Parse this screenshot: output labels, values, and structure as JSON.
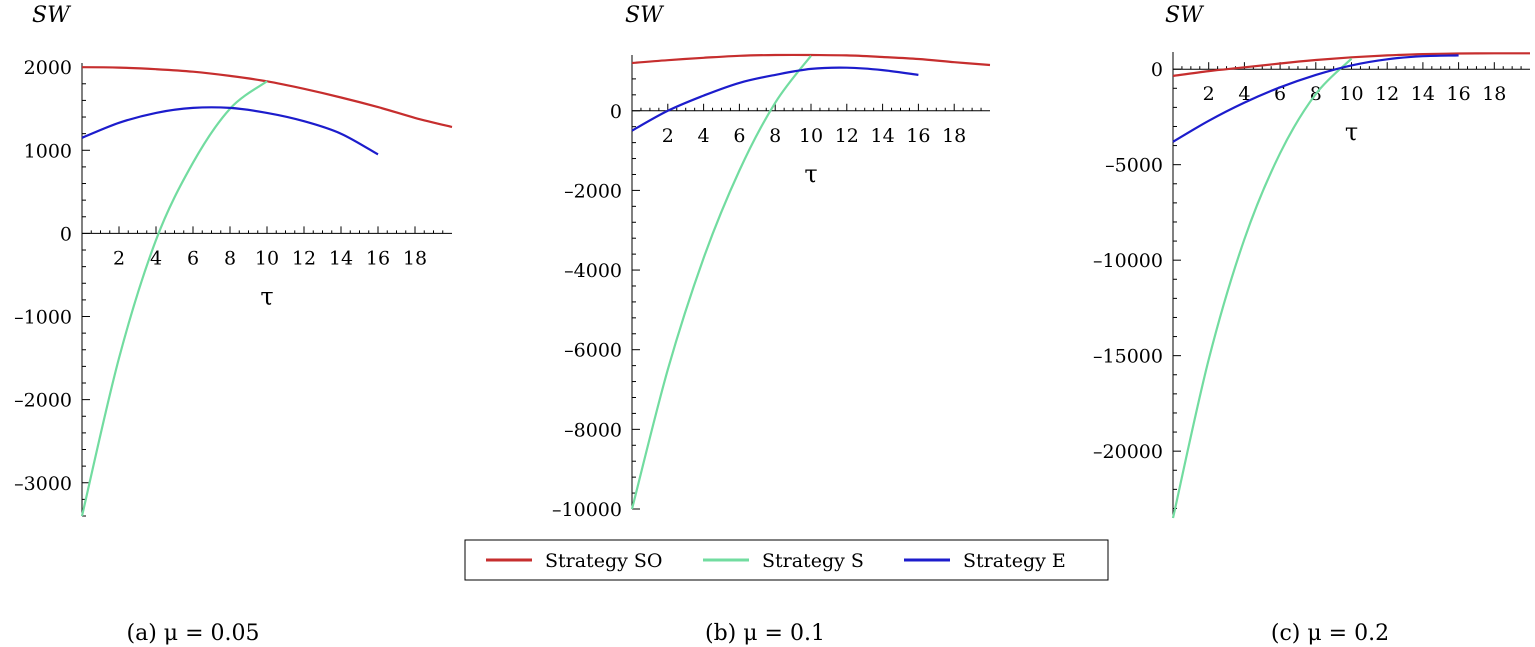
{
  "colors": {
    "so": "#c62e2e",
    "s": "#72dca0",
    "e": "#1c1ccc",
    "axis": "#000000"
  },
  "legend": {
    "placement": "bottom-center",
    "entries": [
      {
        "label": "Strategy SO",
        "color": "#c62e2e"
      },
      {
        "label": "Strategy S",
        "color": "#72dca0"
      },
      {
        "label": "Strategy E",
        "color": "#1c1ccc"
      }
    ]
  },
  "chart_data": [
    {
      "type": "line",
      "caption": "(a)  μ = 0.05",
      "ylabel": "SW",
      "xlabel": "τ",
      "xlim": [
        0,
        20
      ],
      "ylim": [
        -3400,
        2050
      ],
      "xticks": [
        2,
        4,
        6,
        8,
        10,
        12,
        14,
        16,
        18
      ],
      "yticks": [
        2000,
        1000,
        0,
        -1000,
        -2000,
        -3000
      ],
      "grid": false,
      "series": [
        {
          "name": "Strategy SO",
          "x": [
            0,
            2,
            4,
            6,
            8,
            10,
            12,
            14,
            16,
            18,
            20
          ],
          "y": [
            2000,
            1995,
            1975,
            1945,
            1895,
            1830,
            1740,
            1635,
            1520,
            1390,
            1280
          ]
        },
        {
          "name": "Strategy S",
          "x": [
            0,
            2,
            4,
            6,
            8,
            10
          ],
          "y": [
            -3400,
            -1500,
            -80,
            850,
            1500,
            1830
          ]
        },
        {
          "name": "Strategy E",
          "x": [
            0,
            2,
            4,
            6,
            8,
            10,
            12,
            14,
            16
          ],
          "y": [
            1150,
            1330,
            1450,
            1510,
            1510,
            1450,
            1350,
            1200,
            950
          ]
        }
      ]
    },
    {
      "type": "line",
      "caption": "(b)  μ = 0.1",
      "ylabel": "SW",
      "xlabel": "τ",
      "xlim": [
        0,
        20
      ],
      "ylim": [
        -10000,
        1400
      ],
      "xticks": [
        2,
        4,
        6,
        8,
        10,
        12,
        14,
        16,
        18
      ],
      "yticks": [
        0,
        -2000,
        -4000,
        -6000,
        -8000,
        -10000
      ],
      "grid": false,
      "series": [
        {
          "name": "Strategy SO",
          "x": [
            0,
            2,
            4,
            6,
            8,
            10,
            12,
            14,
            16,
            18,
            20
          ],
          "y": [
            1200,
            1270,
            1330,
            1380,
            1400,
            1400,
            1390,
            1350,
            1300,
            1220,
            1150
          ]
        },
        {
          "name": "Strategy S",
          "x": [
            0,
            2,
            4,
            6,
            8,
            10
          ],
          "y": [
            -10000,
            -6500,
            -3700,
            -1500,
            200,
            1380
          ]
        },
        {
          "name": "Strategy E",
          "x": [
            0,
            2,
            4,
            6,
            8,
            10,
            12,
            14,
            16
          ],
          "y": [
            -500,
            0,
            380,
            700,
            900,
            1050,
            1080,
            1020,
            900
          ]
        }
      ]
    },
    {
      "type": "line",
      "caption": "(c)  μ = 0.2",
      "ylabel": "SW",
      "xlabel": "τ",
      "xlim": [
        0,
        20
      ],
      "ylim": [
        -23500,
        900
      ],
      "xticks": [
        2,
        4,
        6,
        8,
        10,
        12,
        14,
        16,
        18
      ],
      "yticks": [
        0,
        -5000,
        -10000,
        -15000,
        -20000
      ],
      "grid": false,
      "series": [
        {
          "name": "Strategy SO",
          "x": [
            0,
            2,
            4,
            6,
            8,
            10,
            12,
            14,
            16,
            18,
            20
          ],
          "y": [
            -350,
            -100,
            100,
            300,
            480,
            620,
            720,
            790,
            820,
            830,
            830
          ]
        },
        {
          "name": "Strategy S",
          "x": [
            0,
            2,
            4,
            6,
            8,
            10
          ],
          "y": [
            -23500,
            -15200,
            -8900,
            -4400,
            -1300,
            550
          ]
        },
        {
          "name": "Strategy E",
          "x": [
            0,
            2,
            4,
            6,
            8,
            10,
            12,
            14,
            16
          ],
          "y": [
            -3800,
            -2700,
            -1750,
            -950,
            -300,
            200,
            520,
            680,
            720
          ]
        }
      ]
    }
  ]
}
